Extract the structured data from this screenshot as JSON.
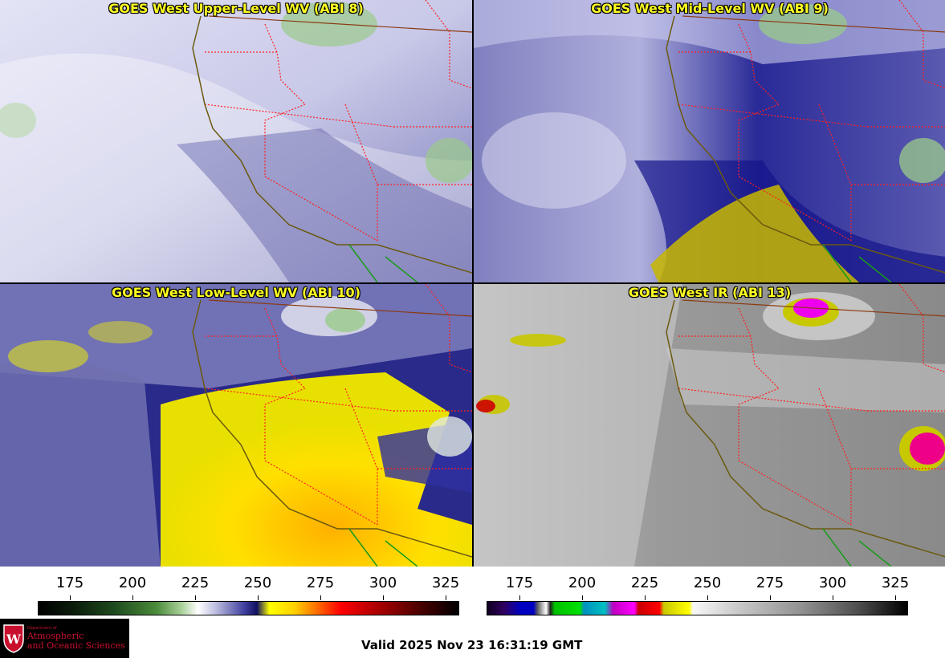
{
  "panels": [
    {
      "title": "GOES West Upper-Level WV (ABI 8)"
    },
    {
      "title": "GOES West Mid-Level WV (ABI 9)"
    },
    {
      "title": "GOES West Low-Level WV (ABI 10)"
    },
    {
      "title": "GOES West IR (ABI 13)"
    }
  ],
  "colorbars": [
    {
      "ticks": [
        "175",
        "200",
        "225",
        "250",
        "275",
        "300",
        "325"
      ]
    },
    {
      "ticks": [
        "175",
        "200",
        "225",
        "250",
        "275",
        "300",
        "325"
      ]
    }
  ],
  "logo": {
    "small_text": "Department of",
    "line1": "Atmospheric",
    "line2": "and Oceanic Sciences"
  },
  "valid_time": "Valid 2025 Nov 23 16:31:19 GMT",
  "colors": {
    "title_text": "#ffff22",
    "state_borders": "#ff2020",
    "coastline": "#6b5a10",
    "mexico_border": "#1a9a1a",
    "logo_red": "#c8102e"
  }
}
